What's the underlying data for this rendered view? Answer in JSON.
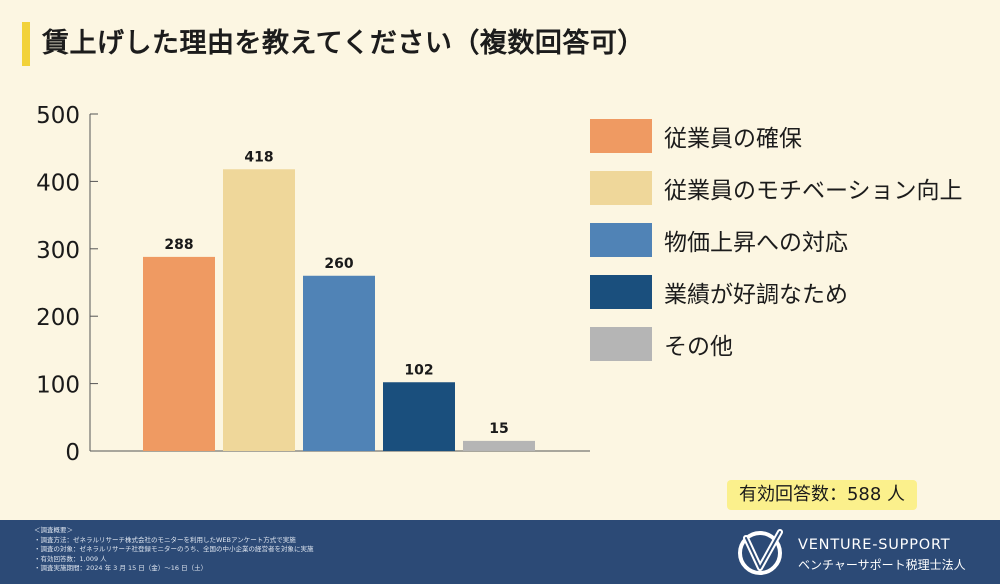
{
  "title": "賃上げした理由を教えてください（複数回答可）",
  "chart_data": {
    "type": "bar",
    "categories": [
      "従業員の確保",
      "従業員のモチベーション向上",
      "物価上昇への対応",
      "業績が好調なため",
      "その他"
    ],
    "values": [
      288,
      418,
      260,
      102,
      15
    ],
    "colors": [
      "#ef9a62",
      "#efd79a",
      "#5083b6",
      "#1a4f7d",
      "#b5b5b5"
    ],
    "ylim": [
      0,
      500
    ],
    "yticks": [
      0,
      100,
      200,
      300,
      400,
      500
    ],
    "legend_position": "right",
    "grid": false
  },
  "total_label": "有効回答数：588 人",
  "footer": {
    "survey_lines": [
      "＜調査概要＞",
      "・調査方法：ゼネラルリサーチ株式会社のモニターを利用したWEBアンケート方式で実施",
      "・調査の対象：ゼネラルリサーチ社登録モニターのうち、全国の中小企業の経営者を対象に実施",
      "・有効回答数：1,009 人",
      "・調査実施期間：2024 年 3 月 15 日（金）～16 日（土）"
    ],
    "brand_en": "VENTURE-SUPPORT",
    "brand_jp": "ベンチャーサポート税理士法人"
  }
}
